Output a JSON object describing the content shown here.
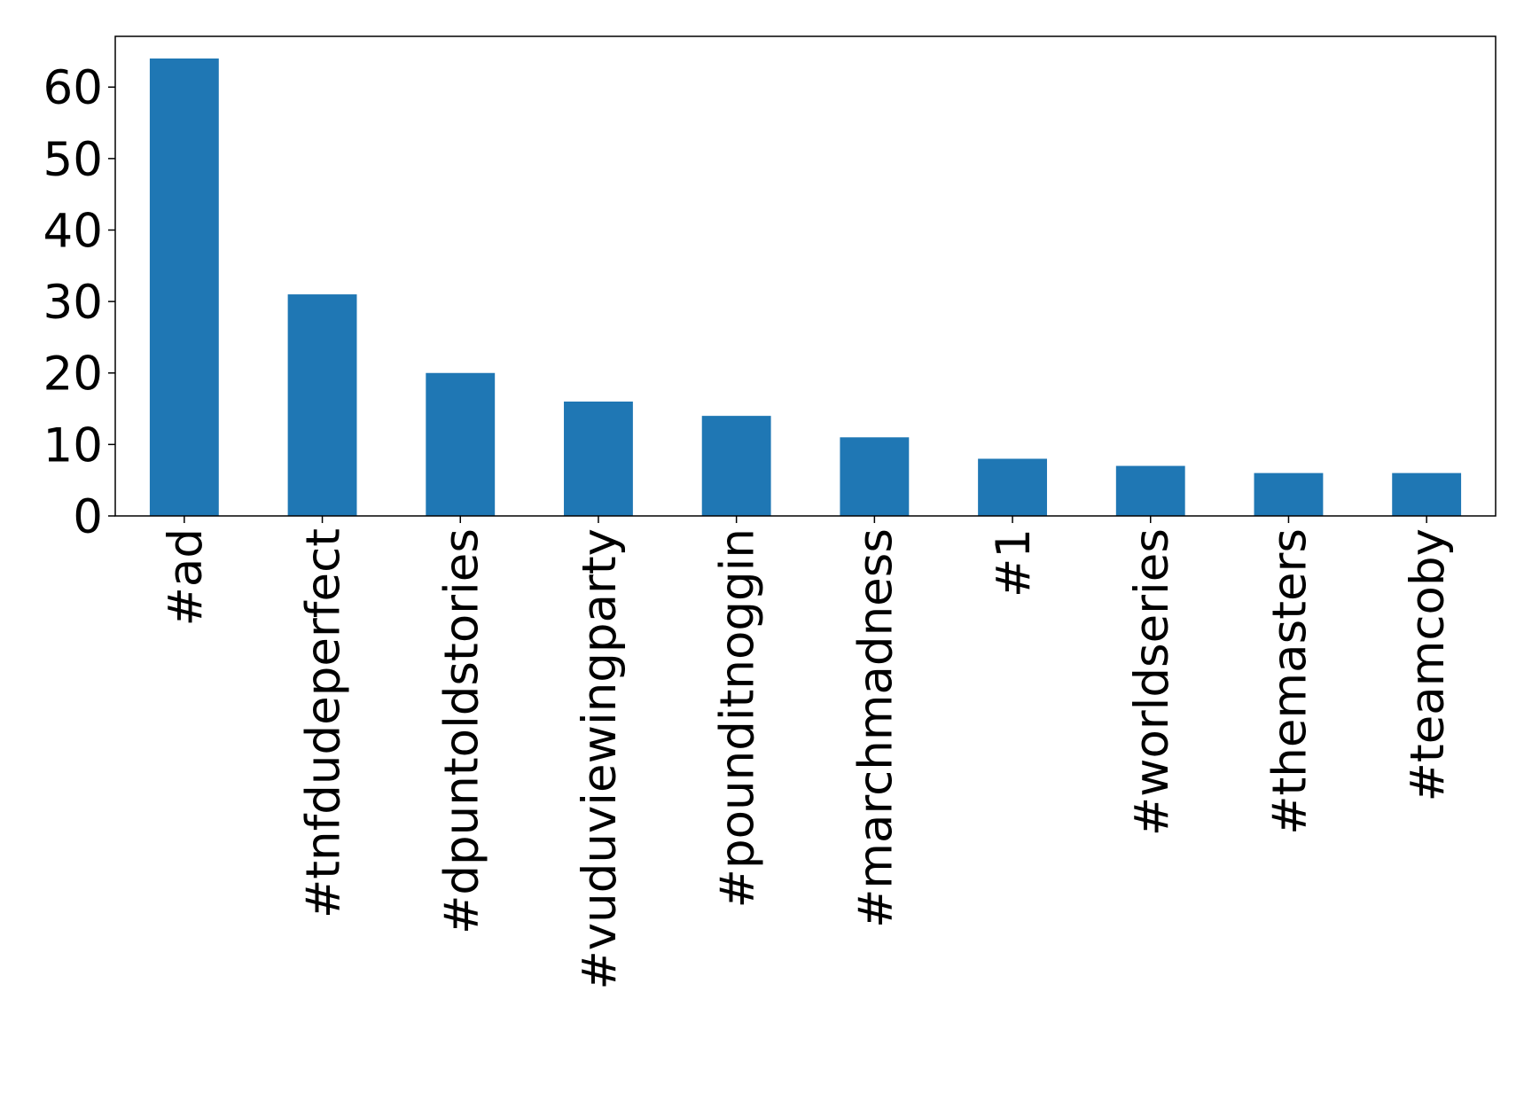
{
  "chart_data": {
    "type": "bar",
    "categories": [
      "#ad",
      "#tnfdudeperfect",
      "#dpuntoldstories",
      "#vuduviewingparty",
      "#pounditnoggin",
      "#marchmadness",
      "#1",
      "#worldseries",
      "#themasters",
      "#teamcoby"
    ],
    "values": [
      64,
      31,
      20,
      16,
      14,
      11,
      8,
      7,
      6,
      6
    ],
    "color": "#1f77b4",
    "ylim": [
      0,
      67.1
    ],
    "yticks": [
      0,
      10,
      20,
      30,
      40,
      50,
      60
    ],
    "grid": false
  }
}
